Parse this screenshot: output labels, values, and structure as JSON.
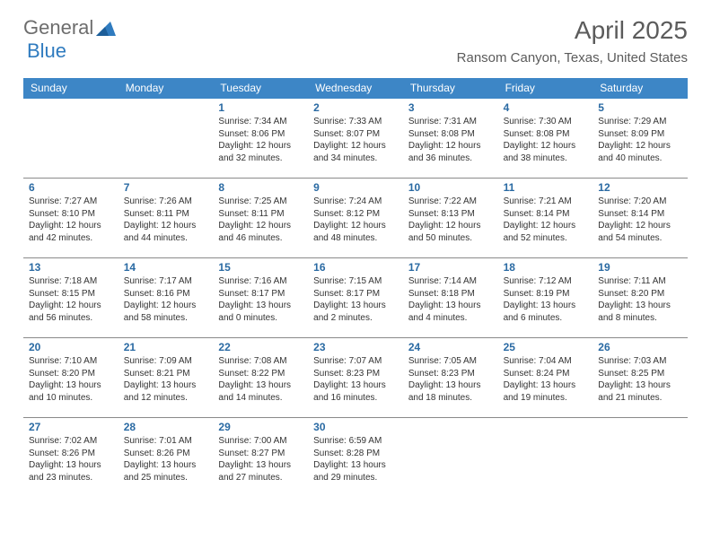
{
  "logo": {
    "text1": "General",
    "text2": "Blue"
  },
  "title": "April 2025",
  "location": "Ransom Canyon, Texas, United States",
  "colors": {
    "header_bg": "#3d86c6",
    "header_text": "#ffffff",
    "daynum": "#2a6aa3",
    "rule": "#8a8a8a",
    "body_text": "#333333",
    "title_text": "#5b5b5b"
  },
  "typography": {
    "title_fontsize": 28,
    "location_fontsize": 15,
    "dayhead_fontsize": 12,
    "daynum_fontsize": 12,
    "cell_fontsize": 10
  },
  "layout": {
    "columns": 7,
    "rows": 5,
    "cell_min_height": 88
  },
  "day_headers": [
    "Sunday",
    "Monday",
    "Tuesday",
    "Wednesday",
    "Thursday",
    "Friday",
    "Saturday"
  ],
  "weeks": [
    [
      null,
      null,
      {
        "n": "1",
        "sr": "7:34 AM",
        "ss": "8:06 PM",
        "dl": "12 hours and 32 minutes."
      },
      {
        "n": "2",
        "sr": "7:33 AM",
        "ss": "8:07 PM",
        "dl": "12 hours and 34 minutes."
      },
      {
        "n": "3",
        "sr": "7:31 AM",
        "ss": "8:08 PM",
        "dl": "12 hours and 36 minutes."
      },
      {
        "n": "4",
        "sr": "7:30 AM",
        "ss": "8:08 PM",
        "dl": "12 hours and 38 minutes."
      },
      {
        "n": "5",
        "sr": "7:29 AM",
        "ss": "8:09 PM",
        "dl": "12 hours and 40 minutes."
      }
    ],
    [
      {
        "n": "6",
        "sr": "7:27 AM",
        "ss": "8:10 PM",
        "dl": "12 hours and 42 minutes."
      },
      {
        "n": "7",
        "sr": "7:26 AM",
        "ss": "8:11 PM",
        "dl": "12 hours and 44 minutes."
      },
      {
        "n": "8",
        "sr": "7:25 AM",
        "ss": "8:11 PM",
        "dl": "12 hours and 46 minutes."
      },
      {
        "n": "9",
        "sr": "7:24 AM",
        "ss": "8:12 PM",
        "dl": "12 hours and 48 minutes."
      },
      {
        "n": "10",
        "sr": "7:22 AM",
        "ss": "8:13 PM",
        "dl": "12 hours and 50 minutes."
      },
      {
        "n": "11",
        "sr": "7:21 AM",
        "ss": "8:14 PM",
        "dl": "12 hours and 52 minutes."
      },
      {
        "n": "12",
        "sr": "7:20 AM",
        "ss": "8:14 PM",
        "dl": "12 hours and 54 minutes."
      }
    ],
    [
      {
        "n": "13",
        "sr": "7:18 AM",
        "ss": "8:15 PM",
        "dl": "12 hours and 56 minutes."
      },
      {
        "n": "14",
        "sr": "7:17 AM",
        "ss": "8:16 PM",
        "dl": "12 hours and 58 minutes."
      },
      {
        "n": "15",
        "sr": "7:16 AM",
        "ss": "8:17 PM",
        "dl": "13 hours and 0 minutes."
      },
      {
        "n": "16",
        "sr": "7:15 AM",
        "ss": "8:17 PM",
        "dl": "13 hours and 2 minutes."
      },
      {
        "n": "17",
        "sr": "7:14 AM",
        "ss": "8:18 PM",
        "dl": "13 hours and 4 minutes."
      },
      {
        "n": "18",
        "sr": "7:12 AM",
        "ss": "8:19 PM",
        "dl": "13 hours and 6 minutes."
      },
      {
        "n": "19",
        "sr": "7:11 AM",
        "ss": "8:20 PM",
        "dl": "13 hours and 8 minutes."
      }
    ],
    [
      {
        "n": "20",
        "sr": "7:10 AM",
        "ss": "8:20 PM",
        "dl": "13 hours and 10 minutes."
      },
      {
        "n": "21",
        "sr": "7:09 AM",
        "ss": "8:21 PM",
        "dl": "13 hours and 12 minutes."
      },
      {
        "n": "22",
        "sr": "7:08 AM",
        "ss": "8:22 PM",
        "dl": "13 hours and 14 minutes."
      },
      {
        "n": "23",
        "sr": "7:07 AM",
        "ss": "8:23 PM",
        "dl": "13 hours and 16 minutes."
      },
      {
        "n": "24",
        "sr": "7:05 AM",
        "ss": "8:23 PM",
        "dl": "13 hours and 18 minutes."
      },
      {
        "n": "25",
        "sr": "7:04 AM",
        "ss": "8:24 PM",
        "dl": "13 hours and 19 minutes."
      },
      {
        "n": "26",
        "sr": "7:03 AM",
        "ss": "8:25 PM",
        "dl": "13 hours and 21 minutes."
      }
    ],
    [
      {
        "n": "27",
        "sr": "7:02 AM",
        "ss": "8:26 PM",
        "dl": "13 hours and 23 minutes."
      },
      {
        "n": "28",
        "sr": "7:01 AM",
        "ss": "8:26 PM",
        "dl": "13 hours and 25 minutes."
      },
      {
        "n": "29",
        "sr": "7:00 AM",
        "ss": "8:27 PM",
        "dl": "13 hours and 27 minutes."
      },
      {
        "n": "30",
        "sr": "6:59 AM",
        "ss": "8:28 PM",
        "dl": "13 hours and 29 minutes."
      },
      null,
      null,
      null
    ]
  ],
  "labels": {
    "sunrise": "Sunrise:",
    "sunset": "Sunset:",
    "daylight": "Daylight:"
  }
}
